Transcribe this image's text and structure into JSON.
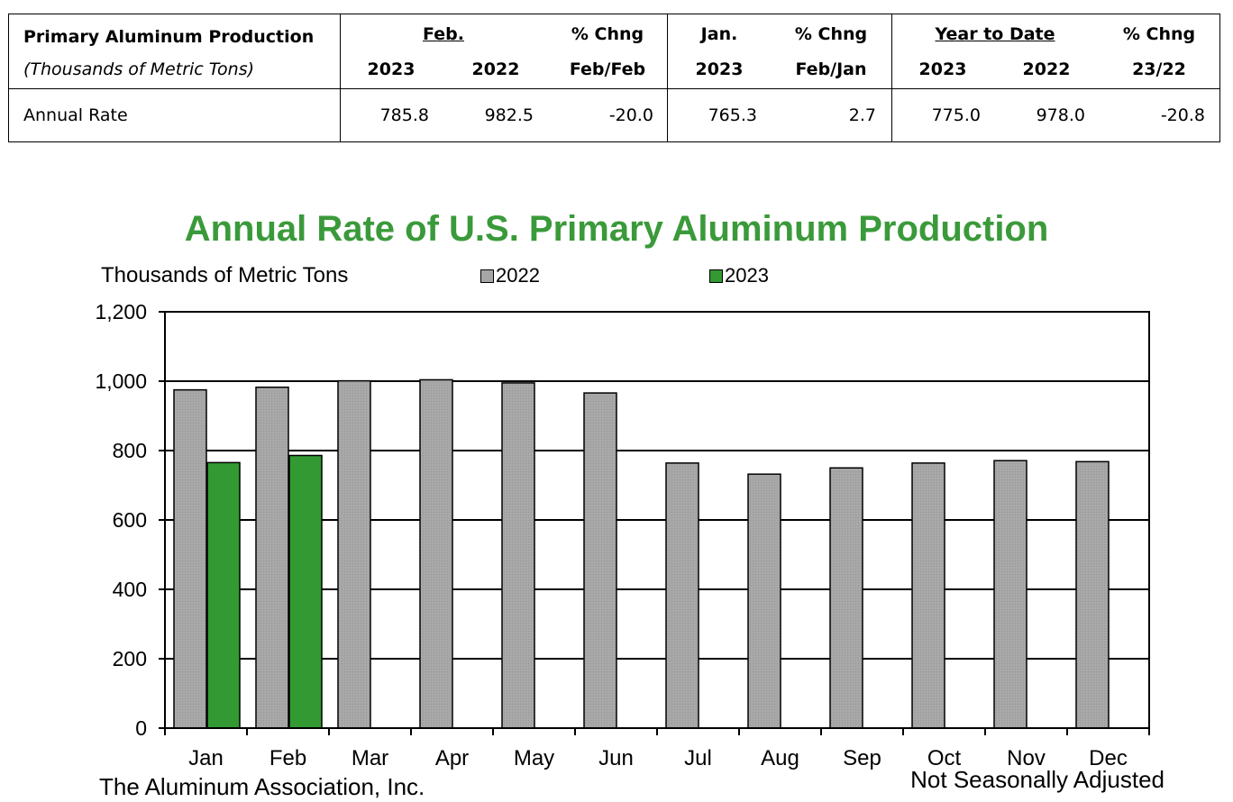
{
  "table": {
    "header_title": "Primary Aluminum Production",
    "header_subtitle": "(Thousands of Metric Tons)",
    "feb_label": "Feb.",
    "feb_2023": "2023",
    "feb_2022": "2022",
    "pct_feb_label": "% Chng",
    "pct_feb_sub": "Feb/Feb",
    "jan_label": "Jan.",
    "jan_2023": "2023",
    "pct_jan_label": "% Chng",
    "pct_jan_sub": "Feb/Jan",
    "ytd_label": "Year to Date",
    "ytd_2023": "2023",
    "ytd_2022": "2022",
    "pct_ytd_label": "% Chng",
    "pct_ytd_sub": "23/22",
    "row": {
      "label": "Annual Rate",
      "feb_2023": "785.8",
      "feb_2022": "982.5",
      "pct_feb": "-20.0",
      "jan_2023": "765.3",
      "pct_jan": "2.7",
      "ytd_2023": "775.0",
      "ytd_2022": "978.0",
      "pct_ytd": "-20.8"
    }
  },
  "chart_data": {
    "type": "bar",
    "title": "Annual Rate of U.S. Primary Aluminum Production",
    "ylabel": "Thousands of Metric Tons",
    "xlabel": "",
    "categories": [
      "Jan",
      "Feb",
      "Mar",
      "Apr",
      "May",
      "Jun",
      "Jul",
      "Aug",
      "Sep",
      "Oct",
      "Nov",
      "Dec"
    ],
    "series": [
      {
        "name": "2022",
        "color": "#a6a6a6",
        "values": [
          975,
          982.5,
          1001,
          1004,
          995,
          966,
          764,
          732,
          750,
          764,
          771,
          768
        ]
      },
      {
        "name": "2023",
        "color": "#339933",
        "values": [
          765.3,
          785.8,
          null,
          null,
          null,
          null,
          null,
          null,
          null,
          null,
          null,
          null
        ]
      }
    ],
    "ylim": [
      0,
      1200
    ],
    "yticks": [
      0,
      200,
      400,
      600,
      800,
      1000,
      1200
    ],
    "ytick_labels": [
      "0",
      "200",
      "400",
      "600",
      "800",
      "1,000",
      "1,200"
    ],
    "grid": true,
    "legend_position": "top"
  },
  "footer": {
    "source": "The Aluminum  Association, Inc.",
    "note": "Not Seasonally Adjusted"
  }
}
